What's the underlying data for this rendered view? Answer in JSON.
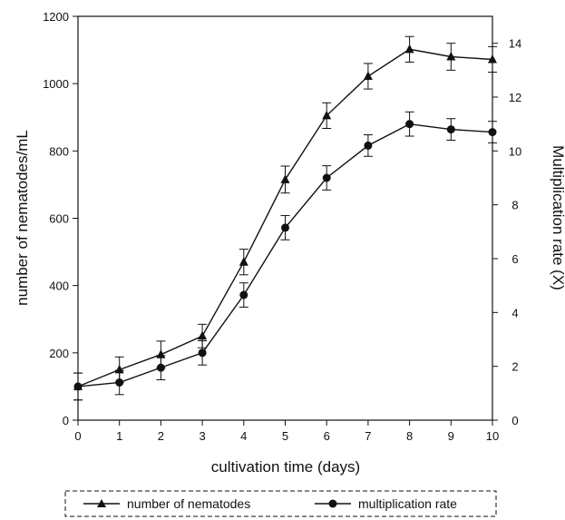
{
  "chart_data": {
    "type": "line",
    "title": "",
    "xlabel": "cultivation time (days)",
    "ylabel": "number of nematodes/mL",
    "y2label": "Multiplication rate (X)",
    "x": [
      0,
      1,
      2,
      3,
      4,
      5,
      6,
      7,
      8,
      9,
      10
    ],
    "xlim": [
      0,
      10
    ],
    "ylim": [
      0,
      1200
    ],
    "y2lim": [
      0,
      15
    ],
    "x_ticks": [
      0,
      1,
      2,
      3,
      4,
      5,
      6,
      7,
      8,
      9,
      10
    ],
    "y_ticks": [
      0,
      200,
      400,
      600,
      800,
      1000,
      1200
    ],
    "y2_ticks": [
      0,
      2,
      4,
      6,
      8,
      10,
      12,
      14
    ],
    "grid": false,
    "legend_position": "bottom",
    "series": [
      {
        "name": "number of nematodes",
        "axis": "left",
        "marker": "triangle",
        "values": [
          100,
          150,
          195,
          250,
          470,
          715,
          905,
          1022,
          1102,
          1080,
          1072
        ],
        "errors": [
          40,
          38,
          40,
          35,
          38,
          40,
          38,
          38,
          38,
          40,
          38
        ]
      },
      {
        "name": "multiplication rate",
        "axis": "right",
        "marker": "circle",
        "values": [
          1.25,
          1.4,
          1.95,
          2.5,
          4.65,
          7.15,
          9.0,
          10.2,
          11.0,
          10.8,
          10.7
        ],
        "errors": [
          0.5,
          0.45,
          0.45,
          0.45,
          0.45,
          0.45,
          0.45,
          0.4,
          0.45,
          0.4,
          0.4
        ]
      }
    ]
  },
  "colors": {
    "line": "#111111",
    "background": "#ffffff"
  }
}
